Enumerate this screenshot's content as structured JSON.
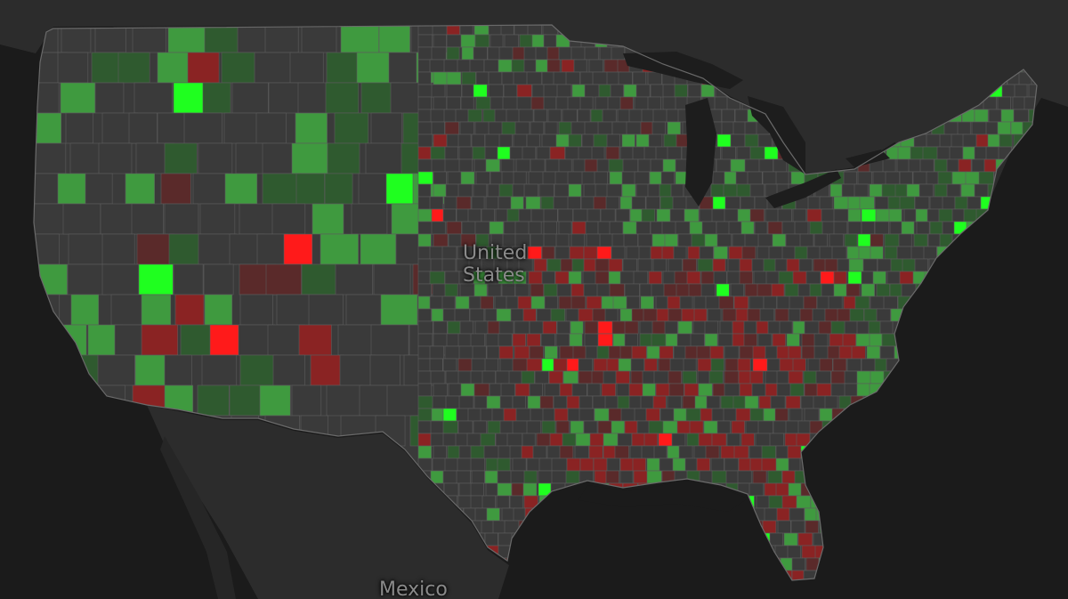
{
  "map": {
    "labels": {
      "country": "United\nStates",
      "neighbor": "Mexico"
    },
    "colors": {
      "ocean": "#1b1b1b",
      "land": "#303030",
      "county_base": "#3a3a3a",
      "county_border": "#5c5c5c",
      "great_lakes": "#1d1d1d",
      "green_bright": "#1fff1f",
      "green_mid": "#3f9a3f",
      "green_dark": "#2f5a2f",
      "red_bright": "#ff1a1a",
      "red_mid": "#8a2323",
      "red_dark": "#5a2a2a"
    },
    "legend_visible": false
  }
}
